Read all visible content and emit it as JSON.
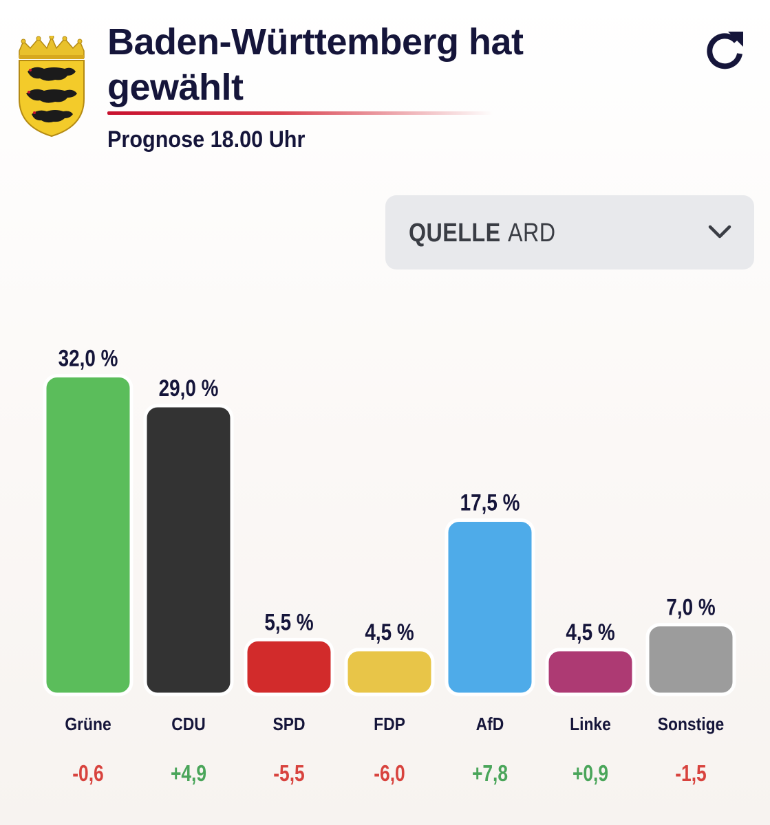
{
  "header": {
    "title": "Baden-Württemberg hat gewählt",
    "subtitle": "Prognose 18.00 Uhr",
    "crest_icon": "coat-of-arms-icon",
    "refresh_icon": "refresh-icon"
  },
  "source": {
    "label": "QUELLE",
    "value": "ARD",
    "icon": "chevron-down-icon"
  },
  "chart_data": {
    "type": "bar",
    "title": "Baden-Württemberg hat gewählt",
    "subtitle": "Prognose 18.00 Uhr",
    "categories": [
      "Grüne",
      "CDU",
      "SPD",
      "FDP",
      "AfD",
      "Linke",
      "Sonstige"
    ],
    "values": [
      32.0,
      29.0,
      5.5,
      4.5,
      17.5,
      4.5,
      7.0
    ],
    "value_labels": [
      "32,0 %",
      "29,0 %",
      "5,5 %",
      "4,5 %",
      "17,5 %",
      "4,5 %",
      "7,0 %"
    ],
    "changes": [
      -0.6,
      4.9,
      -5.5,
      -6.0,
      7.8,
      0.9,
      -1.5
    ],
    "change_labels": [
      "-0,6",
      "+4,9",
      "-5,5",
      "-6,0",
      "+7,8",
      "+0,9",
      "-1,5"
    ],
    "colors": [
      "#5bbd5b",
      "#333333",
      "#d22b2b",
      "#e8c548",
      "#4eabe9",
      "#ad3a73",
      "#9c9c9c"
    ],
    "change_colors": {
      "positive": "#4aa55a",
      "negative": "#d8433e"
    },
    "unit": "%",
    "ylim": [
      0,
      33
    ],
    "xlabel": "",
    "ylabel": "",
    "grid": false
  }
}
